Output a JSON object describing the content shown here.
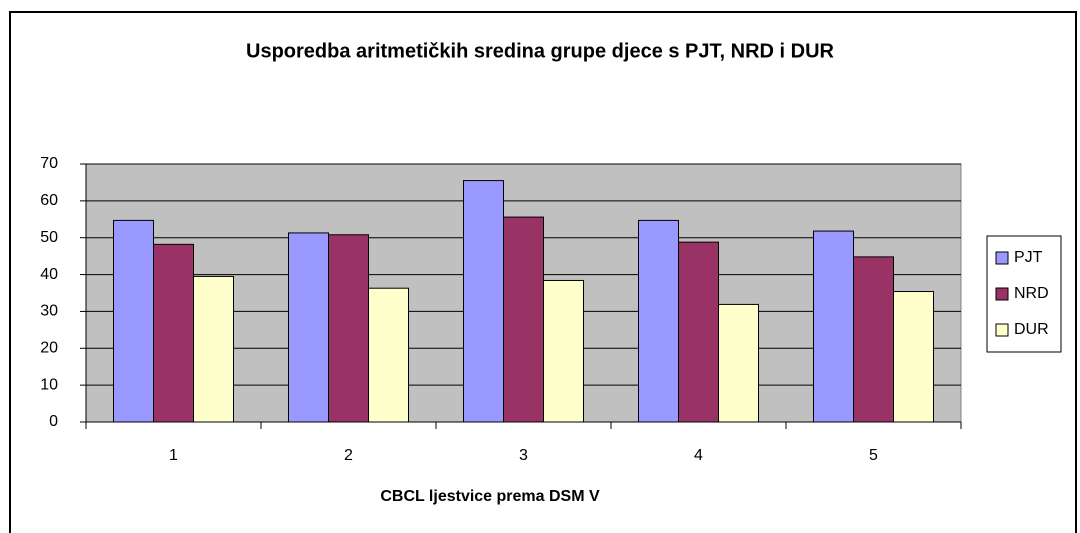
{
  "chart_data": {
    "type": "bar",
    "title": "Usporedba aritmetičkih sredina grupe djece s PJT, NRD i DUR",
    "x_label": "CBCL ljestvice prema DSM V",
    "categories": [
      "1",
      "2",
      "3",
      "4",
      "5"
    ],
    "series": [
      {
        "name": "PJT",
        "color": "#9999ff",
        "values": [
          54.7,
          51.3,
          65.5,
          54.7,
          51.8
        ]
      },
      {
        "name": "NRD",
        "color": "#993366",
        "values": [
          48.2,
          50.8,
          55.6,
          48.8,
          44.8
        ]
      },
      {
        "name": "DUR",
        "color": "#ffffcc",
        "values": [
          39.5,
          36.3,
          38.4,
          31.9,
          35.4
        ]
      }
    ],
    "ylim": [
      0,
      70
    ],
    "yticks": [
      0,
      10,
      20,
      30,
      40,
      50,
      60,
      70
    ],
    "grid": true,
    "legend": "right"
  }
}
